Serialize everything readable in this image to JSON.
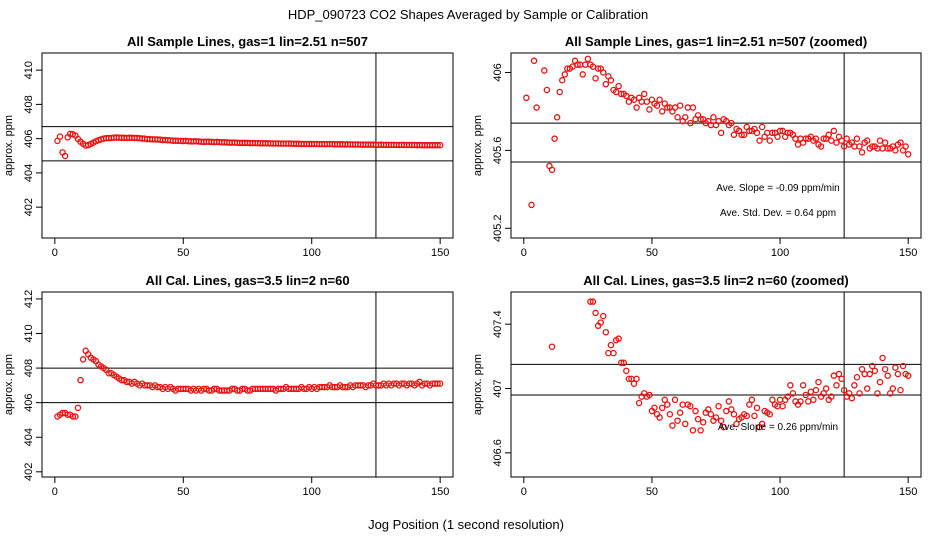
{
  "figure": {
    "suptitle": "HDP_090723  CO2 Shapes Averaged by Sample or Calibration",
    "xlabel": "Jog Position (1 second resolution)"
  },
  "chart_data": [
    {
      "type": "scatter",
      "title": "All Sample Lines, gas=1 lin=2.51 n=507",
      "xlabel": "",
      "ylabel": "approx. ppm",
      "xlim": [
        -5,
        155
      ],
      "ylim": [
        400.2,
        411
      ],
      "xticks": [
        0,
        50,
        100,
        150
      ],
      "yticks": [
        402,
        404,
        406,
        408,
        410
      ],
      "marker_color": "#ee1111",
      "hlines": [
        406.7,
        404.7
      ],
      "vline": 125,
      "annotations": [],
      "x": [
        1,
        2,
        3,
        4,
        5,
        6,
        7,
        8,
        9,
        10,
        11,
        12,
        13,
        14,
        15,
        16,
        17,
        18,
        19,
        20,
        21,
        22,
        23,
        24,
        25,
        26,
        27,
        28,
        29,
        30,
        31,
        32,
        33,
        34,
        35,
        36,
        37,
        38,
        39,
        40,
        41,
        42,
        43,
        44,
        45,
        46,
        47,
        48,
        49,
        50,
        51,
        52,
        53,
        54,
        55,
        56,
        57,
        58,
        59,
        60,
        61,
        62,
        63,
        64,
        65,
        66,
        67,
        68,
        69,
        70,
        71,
        72,
        73,
        74,
        75,
        76,
        77,
        78,
        79,
        80,
        81,
        82,
        83,
        84,
        85,
        86,
        87,
        88,
        89,
        90,
        91,
        92,
        93,
        94,
        95,
        96,
        97,
        98,
        99,
        100,
        101,
        102,
        103,
        104,
        105,
        106,
        107,
        108,
        109,
        110,
        111,
        112,
        113,
        114,
        115,
        116,
        117,
        118,
        119,
        120,
        121,
        122,
        123,
        124,
        125,
        126,
        127,
        128,
        129,
        130,
        131,
        132,
        133,
        134,
        135,
        136,
        137,
        138,
        139,
        140,
        141,
        142,
        143,
        144,
        145,
        146,
        147,
        148,
        149,
        150
      ],
      "y": [
        405.87,
        406.12,
        405.2,
        404.99,
        406.08,
        406.28,
        406.26,
        406.18,
        405.98,
        405.82,
        405.7,
        405.6,
        405.62,
        405.69,
        405.77,
        405.85,
        405.91,
        405.96,
        406.0,
        406.03,
        406.03,
        406.04,
        406.06,
        406.07,
        406.06,
        406.05,
        406.05,
        406.04,
        406.05,
        406.05,
        406.04,
        406.04,
        406.02,
        406.01,
        406.0,
        405.97,
        405.97,
        405.96,
        405.96,
        405.95,
        405.94,
        405.92,
        405.92,
        405.91,
        405.9,
        405.88,
        405.88,
        405.87,
        405.87,
        405.86,
        405.87,
        405.85,
        405.84,
        405.84,
        405.85,
        405.83,
        405.82,
        405.81,
        405.82,
        405.82,
        405.81,
        405.8,
        405.81,
        405.8,
        405.79,
        405.79,
        405.78,
        405.77,
        405.77,
        405.77,
        405.76,
        405.75,
        405.75,
        405.75,
        405.75,
        405.74,
        405.74,
        405.74,
        405.74,
        405.73,
        405.73,
        405.73,
        405.73,
        405.72,
        405.72,
        405.72,
        405.72,
        405.71,
        405.71,
        405.71,
        405.71,
        405.71,
        405.7,
        405.7,
        405.7,
        405.69,
        405.69,
        405.69,
        405.69,
        405.69,
        405.69,
        405.69,
        405.68,
        405.68,
        405.68,
        405.68,
        405.68,
        405.68,
        405.67,
        405.67,
        405.67,
        405.67,
        405.66,
        405.67,
        405.66,
        405.66,
        405.66,
        405.66,
        405.65,
        405.65,
        405.65,
        405.65,
        405.65,
        405.65,
        405.64,
        405.64,
        405.65,
        405.64,
        405.64,
        405.64,
        405.64,
        405.64,
        405.63,
        405.63,
        405.64,
        405.63,
        405.63,
        405.63,
        405.63,
        405.63,
        405.62,
        405.63,
        405.62,
        405.62,
        405.62,
        405.62,
        405.62,
        405.62,
        405.62,
        405.62
      ]
    },
    {
      "type": "scatter",
      "title": "All Sample Lines, gas=1 lin=2.51 n=507 (zoomed)",
      "xlabel": "",
      "ylabel": "approx. ppm",
      "xlim": [
        -5,
        155
      ],
      "ylim": [
        405.15,
        406.1
      ],
      "xticks": [
        0,
        50,
        100,
        150
      ],
      "yticks": [
        405.2,
        405.6,
        406.0
      ],
      "marker_color": "#ee1111",
      "hlines": [
        405.74,
        405.54
      ],
      "vline": 125,
      "annotations": [
        "Ave. Slope =  -0.09  ppm/min",
        "Ave. Std. Dev. =  0.64  ppm"
      ],
      "x": [
        1,
        2,
        3,
        4,
        5,
        6,
        7,
        8,
        9,
        10,
        11,
        12,
        13,
        14,
        15,
        16,
        17,
        18,
        19,
        20,
        21,
        22,
        23,
        24,
        25,
        26,
        27,
        28,
        29,
        30,
        31,
        32,
        33,
        34,
        35,
        36,
        37,
        38,
        39,
        40,
        41,
        42,
        43,
        44,
        45,
        46,
        47,
        48,
        49,
        50,
        51,
        52,
        53,
        54,
        55,
        56,
        57,
        58,
        59,
        60,
        61,
        62,
        63,
        64,
        65,
        66,
        67,
        68,
        69,
        70,
        71,
        72,
        73,
        74,
        75,
        76,
        77,
        78,
        79,
        80,
        81,
        82,
        83,
        84,
        85,
        86,
        87,
        88,
        89,
        90,
        91,
        92,
        93,
        94,
        95,
        96,
        97,
        98,
        99,
        100,
        101,
        102,
        103,
        104,
        105,
        106,
        107,
        108,
        109,
        110,
        111,
        112,
        113,
        114,
        115,
        116,
        117,
        118,
        119,
        120,
        121,
        122,
        123,
        124,
        125,
        126,
        127,
        128,
        129,
        130,
        131,
        132,
        133,
        134,
        135,
        136,
        137,
        138,
        139,
        140,
        141,
        142,
        143,
        144,
        145,
        146,
        147,
        148,
        149,
        150
      ],
      "y": [
        405.87,
        406.12,
        405.32,
        406.06,
        405.82,
        406.17,
        406.18,
        406.01,
        405.91,
        405.52,
        405.5,
        405.66,
        405.77,
        405.9,
        405.96,
        405.99,
        406.02,
        406.02,
        406.03,
        406.06,
        406.04,
        406.04,
        405.99,
        406.04,
        406.07,
        406.04,
        406.03,
        405.97,
        406.02,
        406.02,
        406.0,
        405.94,
        405.98,
        405.96,
        405.91,
        405.9,
        405.93,
        405.89,
        405.89,
        405.88,
        405.85,
        405.87,
        405.86,
        405.82,
        405.87,
        405.85,
        405.89,
        405.85,
        405.81,
        405.86,
        405.84,
        405.83,
        405.86,
        405.8,
        405.84,
        405.82,
        405.82,
        405.8,
        405.82,
        405.77,
        405.83,
        405.75,
        405.77,
        405.82,
        405.74,
        405.82,
        405.76,
        405.78,
        405.76,
        405.76,
        405.74,
        405.75,
        405.73,
        405.77,
        405.73,
        405.75,
        405.69,
        405.76,
        405.75,
        405.73,
        405.74,
        405.68,
        405.71,
        405.7,
        405.68,
        405.68,
        405.72,
        405.7,
        405.7,
        405.71,
        405.69,
        405.65,
        405.72,
        405.67,
        405.69,
        405.65,
        405.69,
        405.69,
        405.67,
        405.7,
        405.7,
        405.67,
        405.69,
        405.69,
        405.68,
        405.66,
        405.63,
        405.66,
        405.64,
        405.66,
        405.66,
        405.67,
        405.65,
        405.66,
        405.63,
        405.62,
        405.66,
        405.66,
        405.68,
        405.65,
        405.7,
        405.64,
        405.67,
        405.65,
        405.62,
        405.66,
        405.63,
        405.64,
        405.62,
        405.66,
        405.62,
        405.59,
        405.64,
        405.65,
        405.61,
        405.62,
        405.62,
        405.61,
        405.65,
        405.61,
        405.64,
        405.61,
        405.61,
        405.62,
        405.6,
        405.63,
        405.64,
        405.6,
        405.62,
        405.58
      ]
    },
    {
      "type": "scatter",
      "title": "All Cal. Lines, gas=3.5 lin=2 n=60",
      "xlabel": "",
      "ylabel": "approx. ppm",
      "xlim": [
        -5,
        155
      ],
      "ylim": [
        401.7,
        412.4
      ],
      "xticks": [
        0,
        50,
        100,
        150
      ],
      "yticks": [
        402,
        404,
        406,
        408,
        410,
        412
      ],
      "marker_color": "#ee1111",
      "hlines": [
        408.0,
        406.0
      ],
      "vline": 125,
      "annotations": [],
      "x": [
        1,
        2,
        3,
        4,
        5,
        6,
        7,
        8,
        9,
        10,
        11,
        12,
        13,
        14,
        15,
        16,
        17,
        18,
        19,
        20,
        21,
        22,
        23,
        24,
        25,
        26,
        27,
        28,
        29,
        30,
        31,
        32,
        33,
        34,
        35,
        36,
        37,
        38,
        39,
        40,
        41,
        42,
        43,
        44,
        45,
        46,
        47,
        48,
        49,
        50,
        51,
        52,
        53,
        54,
        55,
        56,
        57,
        58,
        59,
        60,
        61,
        62,
        63,
        64,
        65,
        66,
        67,
        68,
        69,
        70,
        71,
        72,
        73,
        74,
        75,
        76,
        77,
        78,
        79,
        80,
        81,
        82,
        83,
        84,
        85,
        86,
        87,
        88,
        89,
        90,
        91,
        92,
        93,
        94,
        95,
        96,
        97,
        98,
        99,
        100,
        101,
        102,
        103,
        104,
        105,
        106,
        107,
        108,
        109,
        110,
        111,
        112,
        113,
        114,
        115,
        116,
        117,
        118,
        119,
        120,
        121,
        122,
        123,
        124,
        125,
        126,
        127,
        128,
        129,
        130,
        131,
        132,
        133,
        134,
        135,
        136,
        137,
        138,
        139,
        140,
        141,
        142,
        143,
        144,
        145,
        146,
        147,
        148,
        149,
        150
      ],
      "y": [
        405.2,
        405.3,
        405.4,
        405.4,
        405.3,
        405.3,
        405.2,
        405.2,
        405.7,
        407.3,
        408.5,
        409.0,
        408.8,
        408.6,
        408.5,
        408.4,
        408.2,
        408.1,
        408.0,
        407.9,
        407.7,
        407.7,
        407.6,
        407.5,
        407.4,
        407.3,
        407.3,
        407.2,
        407.2,
        407.1,
        407.2,
        407.1,
        407.0,
        407.1,
        407.0,
        407.0,
        407.0,
        406.9,
        407.0,
        406.9,
        406.9,
        406.8,
        406.9,
        406.8,
        406.9,
        406.8,
        406.7,
        406.8,
        406.8,
        406.8,
        406.8,
        406.8,
        406.7,
        406.8,
        406.7,
        406.8,
        406.7,
        406.8,
        406.8,
        406.7,
        406.7,
        406.8,
        406.8,
        406.7,
        406.7,
        406.7,
        406.7,
        406.7,
        406.8,
        406.8,
        406.7,
        406.7,
        406.8,
        406.8,
        406.7,
        406.7,
        406.8,
        406.8,
        406.8,
        406.8,
        406.8,
        406.8,
        406.8,
        406.8,
        406.8,
        406.7,
        406.8,
        406.8,
        406.8,
        406.9,
        406.8,
        406.8,
        406.8,
        406.8,
        406.8,
        406.9,
        406.8,
        406.8,
        406.9,
        406.8,
        406.9,
        406.8,
        406.9,
        406.9,
        406.9,
        406.9,
        407.0,
        406.9,
        406.9,
        406.9,
        407.0,
        406.9,
        406.9,
        406.9,
        407.0,
        406.9,
        407.0,
        407.0,
        407.0,
        407.0,
        406.9,
        407.0,
        407.0,
        407.1,
        407.0,
        407.0,
        407.0,
        407.1,
        407.0,
        407.1,
        407.0,
        407.1,
        407.1,
        407.0,
        407.1,
        407.1,
        407.0,
        407.1,
        407.1,
        407.0,
        407.1,
        407.2,
        407.0,
        407.1,
        407.1,
        407.0,
        407.1,
        407.1,
        407.1,
        407.1
      ]
    },
    {
      "type": "scatter",
      "title": "All Cal. Lines, gas=3.5 lin=2 n=60 (zoomed)",
      "xlabel": "",
      "ylabel": "approx. ppm",
      "xlim": [
        -5,
        155
      ],
      "ylim": [
        406.45,
        407.6
      ],
      "xticks": [
        0,
        50,
        100,
        150
      ],
      "yticks": [
        406.6,
        407.0,
        407.4
      ],
      "marker_color": "#ee1111",
      "hlines": [
        407.15,
        406.96
      ],
      "vline": 125,
      "annotations": [
        "Ave. Slope =  0.26  ppm/min"
      ],
      "x": [
        11,
        26,
        27,
        28,
        29,
        30,
        31,
        32,
        33,
        34,
        35,
        36,
        37,
        38,
        39,
        40,
        41,
        42,
        43,
        44,
        45,
        46,
        47,
        48,
        49,
        50,
        51,
        52,
        53,
        54,
        55,
        56,
        57,
        58,
        59,
        60,
        61,
        62,
        63,
        64,
        65,
        66,
        67,
        68,
        69,
        70,
        71,
        72,
        73,
        74,
        75,
        76,
        77,
        78,
        79,
        80,
        81,
        82,
        83,
        84,
        85,
        86,
        87,
        88,
        89,
        90,
        91,
        92,
        93,
        94,
        95,
        96,
        97,
        98,
        99,
        100,
        101,
        102,
        103,
        104,
        105,
        106,
        107,
        108,
        109,
        110,
        111,
        112,
        113,
        114,
        115,
        116,
        117,
        118,
        119,
        120,
        121,
        122,
        123,
        124,
        125,
        126,
        127,
        128,
        129,
        130,
        131,
        132,
        133,
        134,
        135,
        136,
        137,
        138,
        139,
        140,
        141,
        142,
        143,
        144,
        145,
        146,
        147,
        148,
        149,
        150
      ],
      "y": [
        407.26,
        407.54,
        407.54,
        407.47,
        407.39,
        407.41,
        407.45,
        407.35,
        407.22,
        407.27,
        407.22,
        407.3,
        407.31,
        407.16,
        407.16,
        407.11,
        407.06,
        407.06,
        407.03,
        407.06,
        406.91,
        406.95,
        406.97,
        406.95,
        406.96,
        406.86,
        406.88,
        406.84,
        406.82,
        406.88,
        406.93,
        406.9,
        406.84,
        406.77,
        406.93,
        406.8,
        406.85,
        406.9,
        406.78,
        406.9,
        406.89,
        406.74,
        406.86,
        406.81,
        406.74,
        406.79,
        406.85,
        406.87,
        406.84,
        406.8,
        406.82,
        406.89,
        406.8,
        406.76,
        406.86,
        406.92,
        406.87,
        406.84,
        406.78,
        406.81,
        406.82,
        406.84,
        406.83,
        406.9,
        406.93,
        406.83,
        406.88,
        406.76,
        406.78,
        406.86,
        406.85,
        406.84,
        406.93,
        406.9,
        406.89,
        406.93,
        406.89,
        406.93,
        406.95,
        407.02,
        406.97,
        406.92,
        406.9,
        406.92,
        407.02,
        406.96,
        406.92,
        406.98,
        406.93,
        406.99,
        407.04,
        406.95,
        406.97,
        407.0,
        406.93,
        406.95,
        407.08,
        407.02,
        407.09,
        407.06,
        406.99,
        406.95,
        406.97,
        406.94,
        407.02,
        407.07,
        406.97,
        407.12,
        407.09,
        407.0,
        407.09,
        407.14,
        407.11,
        406.97,
        407.04,
        407.19,
        407.12,
        407.08,
        406.97,
        407.0,
        407.13,
        407.09,
        406.99,
        407.14,
        407.09,
        407.08
      ]
    }
  ]
}
